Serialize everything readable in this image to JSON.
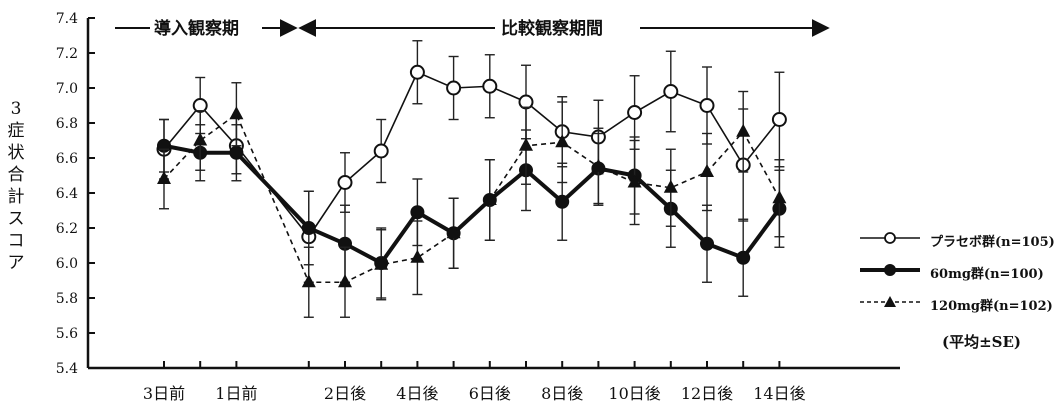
{
  "chart_data": {
    "type": "line",
    "ylabel": "3症状合計スコア",
    "ylim": [
      5.4,
      7.4
    ],
    "yticks": [
      "5.4",
      "5.6",
      "5.8",
      "6.0",
      "6.2",
      "6.4",
      "6.6",
      "6.8",
      "7.0",
      "7.2",
      "7.4"
    ],
    "xtick_labels": [
      "3日前",
      "1日前",
      "2日後",
      "4日後",
      "6日後",
      "8日後",
      "10日後",
      "12日後",
      "14日後"
    ],
    "x": [
      -3,
      -2,
      -1,
      1,
      2,
      3,
      4,
      5,
      6,
      7,
      8,
      9,
      10,
      11,
      12,
      13,
      14
    ],
    "xtick_positions": [
      -3,
      -1,
      2,
      4,
      6,
      8,
      10,
      12,
      14
    ],
    "periods": {
      "lead_in": "導入観察期",
      "comparison": "比較観察期間"
    },
    "series": [
      {
        "name": "プラセボ群(n=105)",
        "marker": "open-circle",
        "line": "solid-thin",
        "values": [
          6.65,
          6.9,
          6.67,
          6.15,
          6.46,
          6.64,
          7.09,
          7.0,
          7.01,
          6.92,
          6.75,
          6.72,
          6.86,
          6.98,
          6.9,
          6.56,
          6.82
        ],
        "se": [
          0.17,
          0.16,
          0.16,
          0.26,
          0.17,
          0.18,
          0.18,
          0.18,
          0.18,
          0.21,
          0.2,
          0.21,
          0.21,
          0.23,
          0.22,
          0.32,
          0.27
        ]
      },
      {
        "name": "60mg群(n=100)",
        "marker": "filled-circle",
        "line": "solid-thick",
        "values": [
          6.67,
          6.63,
          6.63,
          6.2,
          6.11,
          6.0,
          6.29,
          6.17,
          6.36,
          6.53,
          6.35,
          6.54,
          6.5,
          6.31,
          6.11,
          6.03,
          6.31
        ],
        "se": [
          0.15,
          0.16,
          0.16,
          0.21,
          0.22,
          0.2,
          0.19,
          0.2,
          0.23,
          0.23,
          0.22,
          0.2,
          0.22,
          0.22,
          0.22,
          0.22,
          0.22
        ]
      },
      {
        "name": "120mg群(n=102)",
        "marker": "filled-triangle",
        "line": "dashed",
        "values": [
          6.48,
          6.7,
          6.85,
          5.89,
          5.89,
          5.99,
          6.03,
          6.17,
          6.36,
          6.67,
          6.69,
          6.55,
          6.46,
          6.43,
          6.52,
          6.75,
          6.37
        ],
        "se": [
          0.17,
          0.17,
          0.18,
          0.2,
          0.2,
          0.2,
          0.21,
          0.2,
          0.23,
          0.22,
          0.23,
          0.22,
          0.24,
          0.22,
          0.22,
          0.23,
          0.22
        ]
      }
    ],
    "legend_note": "(平均±SE)",
    "legend_position": "right",
    "grid": false
  }
}
